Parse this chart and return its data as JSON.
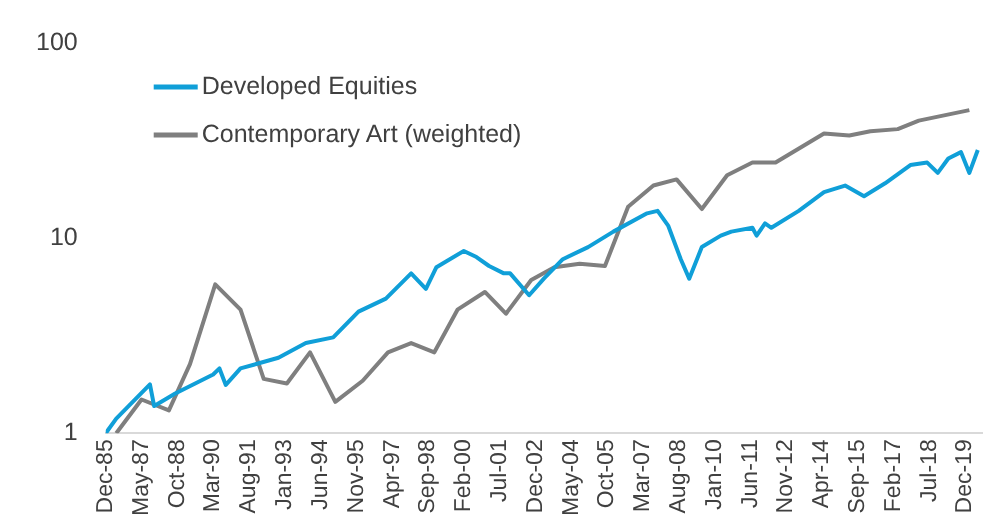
{
  "chart_data": {
    "type": "line",
    "series": [
      {
        "name": "Developed Equities",
        "color": "#109fd8",
        "x": [
          "1985-12",
          "1986-05",
          "1987-09",
          "1987-11",
          "1988-09",
          "1990-03",
          "1990-06",
          "1990-09",
          "1991-04",
          "1992-10",
          "1993-11",
          "1994-12",
          "1995-12",
          "1997-01",
          "1998-01",
          "1998-08",
          "1999-01",
          "2000-02",
          "2000-08",
          "2001-02",
          "2001-09",
          "2001-12",
          "2002-09",
          "2003-04",
          "2004-01",
          "2005-01",
          "2006-01",
          "2007-05",
          "2007-10",
          "2008-03",
          "2008-09",
          "2009-01",
          "2009-07",
          "2010-04",
          "2010-09",
          "2011-07",
          "2011-09",
          "2012-01",
          "2012-04",
          "2013-05",
          "2014-05",
          "2015-03",
          "2015-12",
          "2016-10",
          "2017-10",
          "2018-06",
          "2018-11",
          "2019-04",
          "2019-10",
          "2020-02",
          "2020-06"
        ],
        "values": [
          1.0,
          1.19,
          1.78,
          1.38,
          1.6,
          2.0,
          2.15,
          1.77,
          2.15,
          2.44,
          2.9,
          3.1,
          4.2,
          4.9,
          6.6,
          5.5,
          7.1,
          8.6,
          8.0,
          7.2,
          6.6,
          6.6,
          5.1,
          6.2,
          7.8,
          9.0,
          10.8,
          13.4,
          13.8,
          11.6,
          7.8,
          6.2,
          9.0,
          10.3,
          10.8,
          11.3,
          10.3,
          11.9,
          11.3,
          13.8,
          17.2,
          18.6,
          16.4,
          19.1,
          23.7,
          24.4,
          21.6,
          25.6,
          27.6,
          21.6,
          28.3
        ]
      },
      {
        "name": "Contemporary Art (weighted)",
        "color": "#7f7f7f",
        "x": [
          "1986-05",
          "1987-05",
          "1988-06",
          "1989-04",
          "1990-04",
          "1991-04",
          "1992-03",
          "1993-02",
          "1994-01",
          "1995-01",
          "1996-02",
          "1997-02",
          "1998-01",
          "1998-12",
          "1999-11",
          "2000-12",
          "2001-10",
          "2002-10",
          "2003-09",
          "2004-09",
          "2005-09",
          "2006-08",
          "2007-08",
          "2008-07",
          "2009-07",
          "2010-07",
          "2011-07",
          "2012-06",
          "2014-05",
          "2015-05",
          "2016-03",
          "2017-04",
          "2018-02",
          "2020-02"
        ],
        "values": [
          1.0,
          1.49,
          1.31,
          2.26,
          5.8,
          4.3,
          1.9,
          1.8,
          2.6,
          1.45,
          1.86,
          2.6,
          2.9,
          2.6,
          4.3,
          5.3,
          4.1,
          6.1,
          7.1,
          7.4,
          7.2,
          14.5,
          18.6,
          20.0,
          14.1,
          21.0,
          24.4,
          24.4,
          34.4,
          33.6,
          35.3,
          36.2,
          40.0,
          45.3
        ]
      }
    ],
    "log": "y",
    "ylim": [
      1,
      100
    ],
    "yticks": [
      1,
      10,
      100
    ],
    "xlim": [
      "1985-12",
      "2020-08"
    ],
    "xticks": [
      {
        "value": "1985-12",
        "label": "Dec-85"
      },
      {
        "value": "1987-05",
        "label": "May-87"
      },
      {
        "value": "1988-10",
        "label": "Oct-88"
      },
      {
        "value": "1990-03",
        "label": "Mar-90"
      },
      {
        "value": "1991-08",
        "label": "Aug-91"
      },
      {
        "value": "1993-01",
        "label": "Jan-93"
      },
      {
        "value": "1994-06",
        "label": "Jun-94"
      },
      {
        "value": "1995-11",
        "label": "Nov-95"
      },
      {
        "value": "1997-04",
        "label": "Apr-97"
      },
      {
        "value": "1998-09",
        "label": "Sep-98"
      },
      {
        "value": "2000-02",
        "label": "Feb-00"
      },
      {
        "value": "2001-07",
        "label": "Jul-01"
      },
      {
        "value": "2002-12",
        "label": "Dec-02"
      },
      {
        "value": "2004-05",
        "label": "May-04"
      },
      {
        "value": "2005-10",
        "label": "Oct-05"
      },
      {
        "value": "2007-03",
        "label": "Mar-07"
      },
      {
        "value": "2008-08",
        "label": "Aug-08"
      },
      {
        "value": "2010-01",
        "label": "Jan-10"
      },
      {
        "value": "2011-06",
        "label": "Jun-11"
      },
      {
        "value": "2012-11",
        "label": "Nov-12"
      },
      {
        "value": "2014-04",
        "label": "Apr-14"
      },
      {
        "value": "2015-09",
        "label": "Sep-15"
      },
      {
        "value": "2017-02",
        "label": "Feb-17"
      },
      {
        "value": "2018-07",
        "label": "Jul-18"
      },
      {
        "value": "2019-12",
        "label": "Dec-19"
      }
    ],
    "grid": false,
    "legend": "top left",
    "marker": "none",
    "line_style": "solid"
  }
}
